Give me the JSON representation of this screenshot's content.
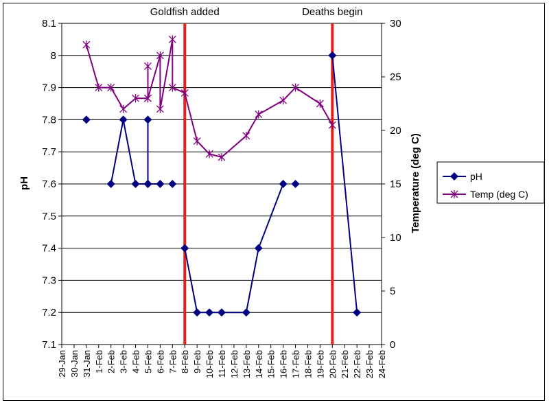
{
  "chart_data": {
    "type": "line",
    "title": "",
    "categories": [
      "29-Jan",
      "30-Jan",
      "31-Jan",
      "1-Feb",
      "2-Feb",
      "3-Feb",
      "4-Feb",
      "5-Feb",
      "6-Feb",
      "7-Feb",
      "8-Feb",
      "9-Feb",
      "10-Feb",
      "11-Feb",
      "12-Feb",
      "13-Feb",
      "14-Feb",
      "15-Feb",
      "16-Feb",
      "17-Feb",
      "18-Feb",
      "19-Feb",
      "20-Feb",
      "21-Feb",
      "22-Feb",
      "23-Feb",
      "24-Feb"
    ],
    "ylabel": "pH",
    "y2label": "Temperature (deg C)",
    "ylim": [
      7.1,
      8.1
    ],
    "yticks": [
      "7.1",
      "7.2",
      "7.3",
      "7.4",
      "7.5",
      "7.6",
      "7.7",
      "7.8",
      "7.9",
      "8",
      "8.1"
    ],
    "y2lim": [
      0,
      30
    ],
    "y2ticks": [
      "0",
      "5",
      "10",
      "15",
      "20",
      "25",
      "30"
    ],
    "legend_position": "right",
    "series": [
      {
        "name": "pH",
        "color": "#000080",
        "marker": "diamond",
        "points": [
          [
            2,
            7.8
          ],
          null,
          [
            4,
            7.6
          ],
          [
            5,
            7.8
          ],
          [
            6,
            7.6
          ],
          [
            7,
            7.6
          ],
          [
            7,
            7.8
          ],
          [
            7,
            7.6
          ],
          [
            8,
            7.6
          ],
          null,
          [
            9,
            7.6
          ],
          null,
          [
            10,
            7.4
          ],
          [
            11,
            7.2
          ],
          [
            12,
            7.2
          ],
          [
            13,
            7.2
          ],
          [
            15,
            7.2
          ],
          [
            16,
            7.4
          ],
          [
            18,
            7.6
          ],
          null,
          [
            19,
            7.6
          ],
          null,
          [
            22,
            8.0
          ],
          [
            24,
            7.2
          ]
        ]
      },
      {
        "name": "Temp (deg C)",
        "color": "#800080",
        "marker": "asterisk",
        "points": [
          [
            2,
            28.0
          ],
          [
            3,
            24.0
          ],
          [
            4,
            24.0
          ],
          [
            5,
            22.0
          ],
          [
            6,
            23.0
          ],
          [
            7,
            23.0
          ],
          [
            7,
            26.0
          ],
          [
            7,
            23.0
          ],
          [
            8,
            27.0
          ],
          [
            8,
            22.0
          ],
          [
            9,
            28.5
          ],
          [
            9,
            24.0
          ],
          [
            10,
            23.5
          ],
          [
            11,
            19.0
          ],
          [
            12,
            17.8
          ],
          [
            13,
            17.5
          ],
          [
            15,
            19.5
          ],
          [
            16,
            21.5
          ],
          [
            18,
            22.8
          ],
          [
            19,
            24.0
          ],
          [
            21,
            22.5
          ],
          [
            22,
            20.5
          ]
        ]
      }
    ],
    "annotations": [
      {
        "label": "Goldfish added",
        "x": 10,
        "color": "#e8201c"
      },
      {
        "label": "Deaths begin",
        "x": 22,
        "color": "#e8201c"
      }
    ]
  }
}
